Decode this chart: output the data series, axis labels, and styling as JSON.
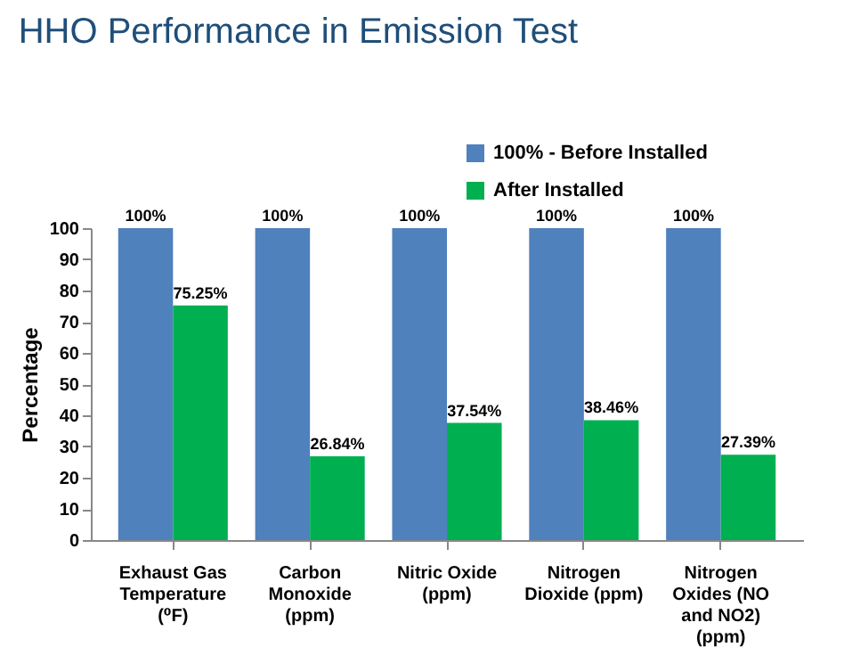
{
  "chart_data": {
    "type": "bar",
    "title": "HHO Performance in Emission Test",
    "ylabel": "Percentage",
    "categories": [
      "Exhaust Gas Temperature (⁰F)",
      "Carbon Monoxide (ppm)",
      "Nitric Oxide (ppm)",
      "Nitrogen Dioxide (ppm)",
      "Nitrogen Oxides (NO and NO2) (ppm)"
    ],
    "series": [
      {
        "name": "100% - Before Installed",
        "color": "#4f81bd",
        "values": [
          100,
          100,
          100,
          100,
          100
        ],
        "value_labels": [
          "100%",
          "100%",
          "100%",
          "100%",
          "100%"
        ]
      },
      {
        "name": "After Installed",
        "color": "#00b050",
        "values": [
          75.25,
          26.84,
          37.54,
          38.46,
          27.39
        ],
        "value_labels": [
          "75.25%",
          "26.84%",
          "37.54%",
          "38.46%",
          "27.39%"
        ]
      }
    ],
    "ylim": [
      0,
      100
    ],
    "yticks": [
      0,
      10,
      20,
      30,
      40,
      50,
      60,
      70,
      80,
      90,
      100
    ],
    "legend": "top right",
    "grid": false
  }
}
